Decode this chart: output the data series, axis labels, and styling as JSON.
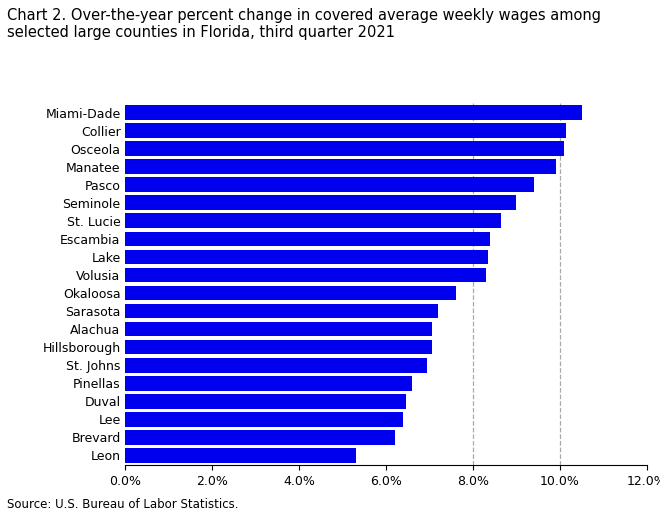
{
  "title": "Chart 2. Over-the-year percent change in covered average weekly wages among\nselected large counties in Florida, third quarter 2021",
  "categories": [
    "Leon",
    "Brevard",
    "Lee",
    "Duval",
    "Pinellas",
    "St. Johns",
    "Hillsborough",
    "Alachua",
    "Sarasota",
    "Okaloosa",
    "Volusia",
    "Lake",
    "Escambia",
    "St. Lucie",
    "Seminole",
    "Pasco",
    "Manatee",
    "Osceola",
    "Collier",
    "Miami-Dade"
  ],
  "values": [
    5.3,
    6.2,
    6.4,
    6.45,
    6.6,
    6.95,
    7.05,
    7.05,
    7.2,
    7.6,
    8.3,
    8.35,
    8.4,
    8.65,
    9.0,
    9.4,
    9.9,
    10.1,
    10.15,
    10.5
  ],
  "bar_color": "#0000EE",
  "xlim": [
    0,
    12.0
  ],
  "xtick_values": [
    0,
    2,
    4,
    6,
    8,
    10,
    12
  ],
  "source": "Source: U.S. Bureau of Labor Statistics.",
  "title_fontsize": 10.5,
  "tick_fontsize": 9,
  "source_fontsize": 8.5,
  "background_color": "#FFFFFF",
  "grid_color": "#AAAAAA",
  "dashed_lines": [
    8.0,
    10.0
  ]
}
